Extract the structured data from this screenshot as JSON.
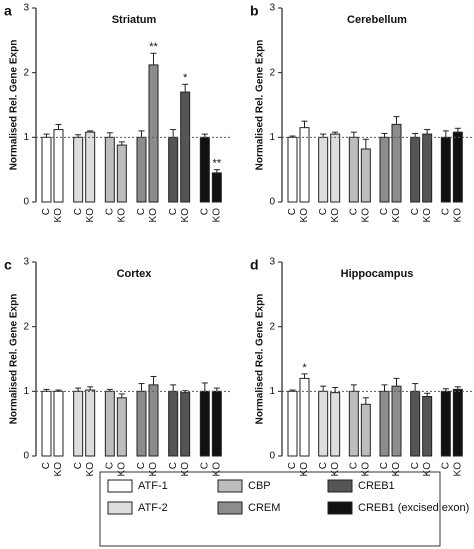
{
  "legend": [
    {
      "name": "ATF-1",
      "color": "#ffffff"
    },
    {
      "name": "ATF-2",
      "color": "#dddddd"
    },
    {
      "name": "CBP",
      "color": "#bdbdbd"
    },
    {
      "name": "CREM",
      "color": "#8c8c8c"
    },
    {
      "name": "CREB1",
      "color": "#555555"
    },
    {
      "name": "CREB1 (excised exon)",
      "color": "#111111"
    }
  ],
  "chart_data": [
    {
      "type": "bar",
      "panel": "a",
      "title": "Striatum",
      "y_label": "Normalised Rel. Gene Expn",
      "categories": [
        "C",
        "KO"
      ],
      "ylim": [
        0,
        3
      ],
      "yticks": [
        0,
        1,
        2,
        3
      ],
      "reference_line": 1,
      "reference_color": "#e0202a",
      "series": [
        {
          "values": [
            1.0,
            1.12
          ],
          "errors": [
            0.05,
            0.08
          ],
          "annotations": [
            null,
            null
          ]
        },
        {
          "values": [
            1.0,
            1.08
          ],
          "errors": [
            0.04,
            0.02
          ],
          "annotations": [
            null,
            null
          ]
        },
        {
          "values": [
            1.0,
            0.88
          ],
          "errors": [
            0.07,
            0.05
          ],
          "annotations": [
            null,
            null
          ]
        },
        {
          "values": [
            1.0,
            2.12
          ],
          "errors": [
            0.1,
            0.18
          ],
          "annotations": [
            null,
            "**"
          ]
        },
        {
          "values": [
            1.0,
            1.7
          ],
          "errors": [
            0.12,
            0.12
          ],
          "annotations": [
            null,
            "*"
          ]
        },
        {
          "values": [
            1.0,
            0.45
          ],
          "errors": [
            0.05,
            0.05
          ],
          "annotations": [
            null,
            "**"
          ]
        }
      ]
    },
    {
      "type": "bar",
      "panel": "b",
      "title": "Cerebellum",
      "y_label": "Normalised Rel. Gene Expn",
      "categories": [
        "C",
        "KO"
      ],
      "ylim": [
        0,
        3
      ],
      "yticks": [
        0,
        1,
        2,
        3
      ],
      "reference_line": 1,
      "reference_color": "#e0202a",
      "series": [
        {
          "values": [
            1.0,
            1.15
          ],
          "errors": [
            0.02,
            0.1
          ],
          "annotations": [
            null,
            null
          ]
        },
        {
          "values": [
            1.0,
            1.05
          ],
          "errors": [
            0.05,
            0.03
          ],
          "annotations": [
            null,
            null
          ]
        },
        {
          "values": [
            1.0,
            0.82
          ],
          "errors": [
            0.08,
            0.15
          ],
          "annotations": [
            null,
            null
          ]
        },
        {
          "values": [
            1.0,
            1.2
          ],
          "errors": [
            0.06,
            0.12
          ],
          "annotations": [
            null,
            null
          ]
        },
        {
          "values": [
            1.0,
            1.05
          ],
          "errors": [
            0.06,
            0.07
          ],
          "annotations": [
            null,
            null
          ]
        },
        {
          "values": [
            1.0,
            1.08
          ],
          "errors": [
            0.1,
            0.06
          ],
          "annotations": [
            null,
            null
          ]
        }
      ]
    },
    {
      "type": "bar",
      "panel": "c",
      "title": "Cortex",
      "y_label": "Normalised Rel. Gene Expn",
      "categories": [
        "C",
        "KO"
      ],
      "ylim": [
        0,
        3
      ],
      "yticks": [
        0,
        1,
        2,
        3
      ],
      "reference_line": 1,
      "reference_color": "#e0202a",
      "series": [
        {
          "values": [
            1.0,
            1.0
          ],
          "errors": [
            0.03,
            0.02
          ],
          "annotations": [
            null,
            null
          ]
        },
        {
          "values": [
            1.0,
            1.02
          ],
          "errors": [
            0.05,
            0.05
          ],
          "annotations": [
            null,
            null
          ]
        },
        {
          "values": [
            1.0,
            0.9
          ],
          "errors": [
            0.03,
            0.06
          ],
          "annotations": [
            null,
            null
          ]
        },
        {
          "values": [
            1.0,
            1.1
          ],
          "errors": [
            0.12,
            0.13
          ],
          "annotations": [
            null,
            null
          ]
        },
        {
          "values": [
            1.0,
            0.98
          ],
          "errors": [
            0.1,
            0.03
          ],
          "annotations": [
            null,
            null
          ]
        },
        {
          "values": [
            1.0,
            1.0
          ],
          "errors": [
            0.13,
            0.05
          ],
          "annotations": [
            null,
            null
          ]
        }
      ]
    },
    {
      "type": "bar",
      "panel": "d",
      "title": "Hippocampus",
      "y_label": "Normalised Rel. Gene Expn",
      "categories": [
        "C",
        "KO"
      ],
      "ylim": [
        0,
        3
      ],
      "yticks": [
        0,
        1,
        2,
        3
      ],
      "reference_line": 1,
      "reference_color": "#e0202a",
      "series": [
        {
          "values": [
            1.0,
            1.2
          ],
          "errors": [
            0.02,
            0.07
          ],
          "annotations": [
            null,
            "*"
          ]
        },
        {
          "values": [
            1.0,
            0.98
          ],
          "errors": [
            0.08,
            0.08
          ],
          "annotations": [
            null,
            null
          ]
        },
        {
          "values": [
            1.0,
            0.8
          ],
          "errors": [
            0.1,
            0.1
          ],
          "annotations": [
            null,
            null
          ]
        },
        {
          "values": [
            1.0,
            1.08
          ],
          "errors": [
            0.1,
            0.12
          ],
          "annotations": [
            null,
            null
          ]
        },
        {
          "values": [
            1.0,
            0.92
          ],
          "errors": [
            0.12,
            0.05
          ],
          "annotations": [
            null,
            null
          ]
        },
        {
          "values": [
            1.0,
            1.03
          ],
          "errors": [
            0.04,
            0.04
          ],
          "annotations": [
            null,
            null
          ]
        }
      ]
    }
  ]
}
